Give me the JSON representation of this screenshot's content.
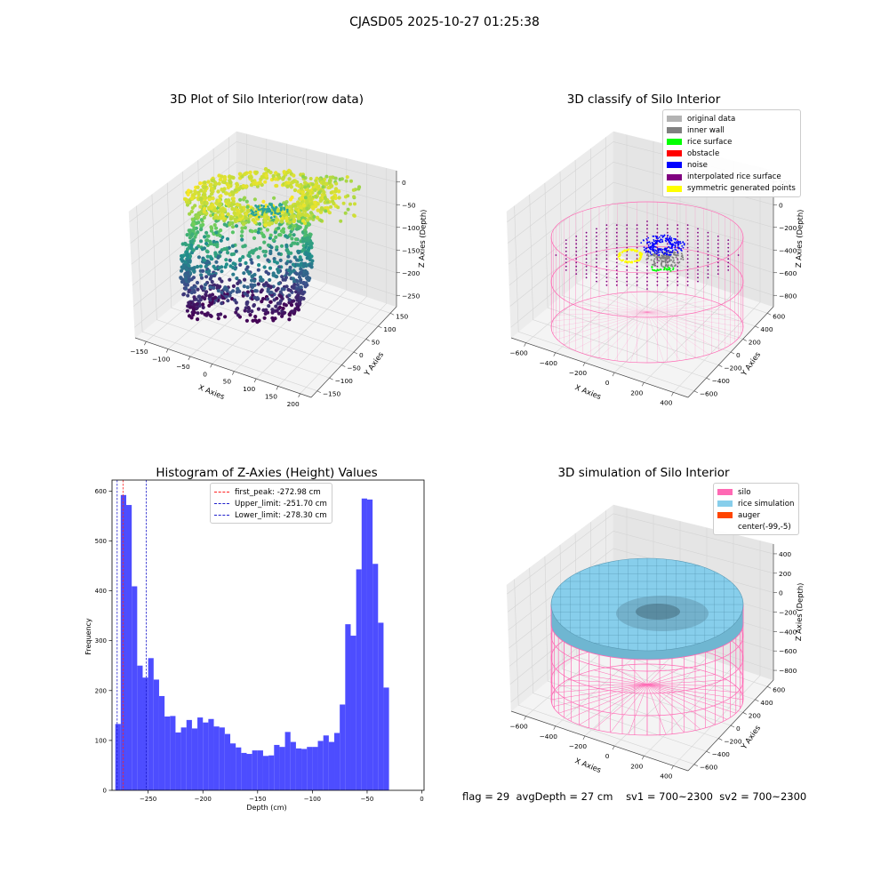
{
  "suptitle": "CJASD05 2025-10-27 01:25:38",
  "colors": {
    "hist_bar": "#4d4dff",
    "first_peak": "#ff2020",
    "limit": "#2020cc",
    "silo": "#ff69b4",
    "rice": "#87ceeb",
    "auger": "#ff4500",
    "original_data": "#b3b3b3",
    "inner_wall": "#808080",
    "rice_surface": "#00ff00",
    "obstacle": "#ff0000",
    "noise": "#0000ff",
    "interpolated": "#800080",
    "symmetric": "#ffff00"
  },
  "panel1": {
    "title": "3D Plot of Silo Interior(row data)",
    "xlabel": "X Axies",
    "ylabel": "Y Axies",
    "zlabel": "Z Axies (Depth)",
    "xticks": [
      "−150",
      "−100",
      "−50",
      "0",
      "50",
      "100",
      "150",
      "200"
    ],
    "yticks": [
      "−150",
      "−100",
      "−50",
      "0",
      "50",
      "100",
      "150"
    ],
    "zticks": [
      "0",
      "−50",
      "−100",
      "−150",
      "−200",
      "−250"
    ]
  },
  "panel2": {
    "title": "3D classify of Silo Interior",
    "xlabel": "X Axies",
    "ylabel": "Y Axies",
    "zlabel": "Z Axies (Depth)",
    "xticks": [
      "−600",
      "−400",
      "−200",
      "0",
      "200",
      "400"
    ],
    "yticks": [
      "−600",
      "−400",
      "−200",
      "0",
      "200",
      "400",
      "600"
    ],
    "zticks": [
      "200",
      "0",
      "−200",
      "−400",
      "−600",
      "−800"
    ],
    "legend": [
      {
        "label": "original data",
        "color": "#b3b3b3"
      },
      {
        "label": "inner wall",
        "color": "#808080"
      },
      {
        "label": "rice surface",
        "color": "#00ff00"
      },
      {
        "label": "obstacle",
        "color": "#ff0000"
      },
      {
        "label": "noise",
        "color": "#0000ff"
      },
      {
        "label": "interpolated rice surface",
        "color": "#800080"
      },
      {
        "label": "symmetric generated points",
        "color": "#ffff00"
      }
    ]
  },
  "panel4": {
    "title": "3D simulation of Silo Interior",
    "xlabel": "X Axies",
    "ylabel": "Y Axies",
    "zlabel": "Z Axies (Depth)",
    "xticks": [
      "−600",
      "−400",
      "−200",
      "0",
      "200",
      "400"
    ],
    "yticks": [
      "−600",
      "−400",
      "−200",
      "0",
      "200",
      "400",
      "600"
    ],
    "zticks": [
      "400",
      "200",
      "0",
      "−200",
      "−400",
      "−600",
      "−800"
    ],
    "legend": [
      {
        "label": "silo",
        "color": "#ff69b4"
      },
      {
        "label": "rice simulation",
        "color": "#87ceeb"
      },
      {
        "label": "auger",
        "color": "#ff4500"
      },
      {
        "label": "center(-99,-5)",
        "color": ""
      }
    ]
  },
  "chart_data": {
    "type": "bar",
    "title": "Histogram of Z-Axies (Height) Values",
    "xlabel": "Depth (cm)",
    "ylabel": "Frequency",
    "xlim": [
      -283,
      2
    ],
    "ylim": [
      0,
      622
    ],
    "xticks": [
      -250,
      -200,
      -150,
      -100,
      -50,
      0
    ],
    "xtick_labels": [
      "−250",
      "−200",
      "−150",
      "−100",
      "−50",
      "0"
    ],
    "yticks": [
      0,
      100,
      200,
      300,
      400,
      500,
      600
    ],
    "bin_start": -280,
    "bin_width": 5,
    "values": [
      133,
      592,
      572,
      409,
      250,
      226,
      265,
      222,
      189,
      148,
      149,
      116,
      126,
      141,
      124,
      146,
      136,
      143,
      128,
      126,
      113,
      94,
      86,
      75,
      73,
      80,
      80,
      69,
      70,
      91,
      87,
      117,
      97,
      84,
      83,
      87,
      87,
      99,
      110,
      97,
      115,
      172,
      333,
      310,
      443,
      585,
      583,
      454,
      336,
      206
    ],
    "vlines": [
      {
        "x": -272.98,
        "label": "first_peak: -272.98 cm",
        "color": "#ff2020"
      },
      {
        "x": -251.7,
        "label": "Upper_limit: -251.70 cm",
        "color": "#2020cc"
      },
      {
        "x": -278.3,
        "label": "Lower_limit: -278.30 cm",
        "color": "#2020cc"
      }
    ]
  },
  "status": {
    "flag": "flag = 29",
    "avg": "avgDepth = 27 cm",
    "sv1": "sv1 = 700~2300",
    "sv2": "sv2 = 700~2300"
  }
}
